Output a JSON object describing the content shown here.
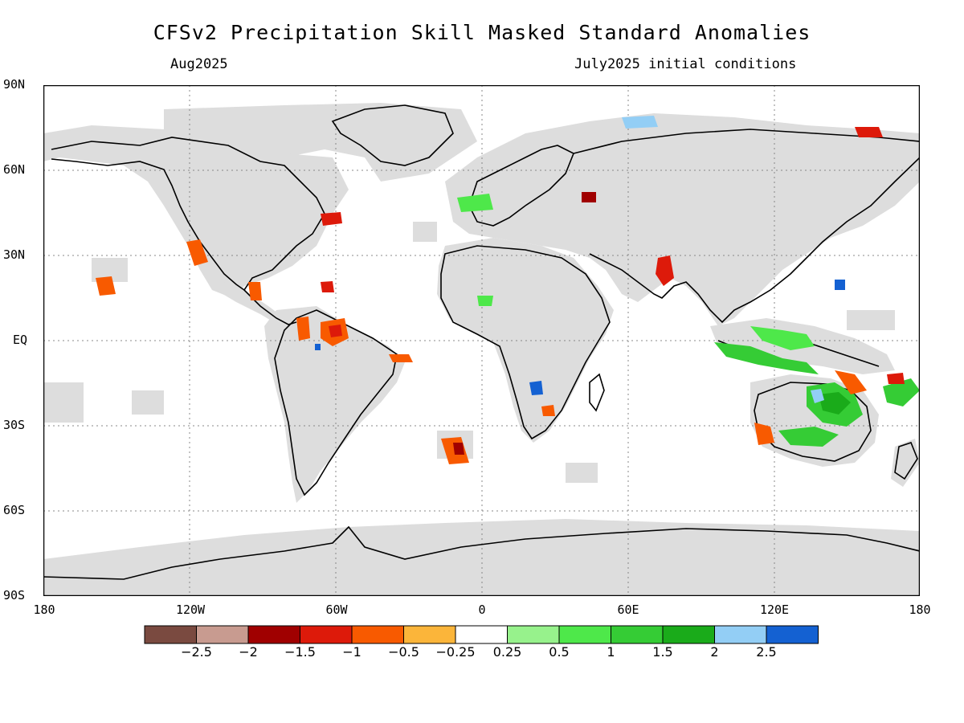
{
  "title": "CFSv2 Precipitation Skill Masked Standard Anomalies",
  "subtitle_left": "Aug2025",
  "subtitle_right": "July2025 initial conditions",
  "lat_labels": [
    "90N",
    "60N",
    "30N",
    "EQ",
    "30S",
    "60S",
    "90S"
  ],
  "lon_labels": [
    "180",
    "120W",
    "60W",
    "0",
    "60E",
    "120E",
    "180"
  ],
  "colorbar": {
    "colors": [
      "#7a4a40",
      "#c89b90",
      "#a00000",
      "#dd1a0a",
      "#f85a00",
      "#fbb53a",
      "#ffffff",
      "#97f28c",
      "#4ee84a",
      "#35cc35",
      "#1aab1a",
      "#93cef5",
      "#1461d2"
    ],
    "labels": [
      "-2.5",
      "-2",
      "-1.5",
      "-1",
      "-0.5",
      "-0.25",
      "0.25",
      "0.5",
      "1",
      "1.5",
      "2",
      "2.5"
    ]
  },
  "colors": {
    "masked_gray": "#dddddd",
    "coastline": "#000000",
    "grid": "#888888"
  }
}
